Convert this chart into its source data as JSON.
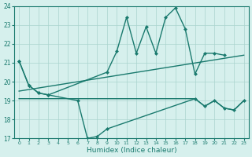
{
  "xlabel": "Humidex (Indice chaleur)",
  "x_all": [
    0,
    1,
    2,
    3,
    4,
    5,
    6,
    7,
    8,
    9,
    10,
    11,
    12,
    13,
    14,
    15,
    16,
    17,
    18,
    19,
    20,
    21,
    22,
    23
  ],
  "line_top_x": [
    0,
    1,
    2,
    3,
    9,
    10,
    11,
    12,
    13,
    14,
    15,
    16,
    17,
    18,
    19,
    20,
    21
  ],
  "line_top_y": [
    21.1,
    19.8,
    19.4,
    19.3,
    20.5,
    21.6,
    23.4,
    21.5,
    22.9,
    21.5,
    23.4,
    23.9,
    22.8,
    20.4,
    21.5,
    21.5,
    21.4
  ],
  "line_bot_x": [
    0,
    1,
    2,
    3,
    6,
    7,
    8,
    9,
    18,
    19,
    20,
    21,
    22,
    23
  ],
  "line_bot_y": [
    21.1,
    19.8,
    19.4,
    19.3,
    19.0,
    17.0,
    17.1,
    17.5,
    19.1,
    18.7,
    19.0,
    18.6,
    18.5,
    19.0
  ],
  "line_trend_x": [
    0,
    23
  ],
  "line_trend_y": [
    19.5,
    21.4
  ],
  "line_flat_x": [
    0,
    18,
    19,
    20,
    21,
    22,
    23
  ],
  "line_flat_y": [
    19.1,
    19.1,
    18.7,
    19.0,
    18.6,
    18.5,
    19.0
  ],
  "color_main": "#1a7a6e",
  "bg_color": "#d6f0ed",
  "grid_color": "#aad4ce",
  "ylim": [
    17,
    24
  ],
  "xlim_min": -0.5,
  "xlim_max": 23.5
}
